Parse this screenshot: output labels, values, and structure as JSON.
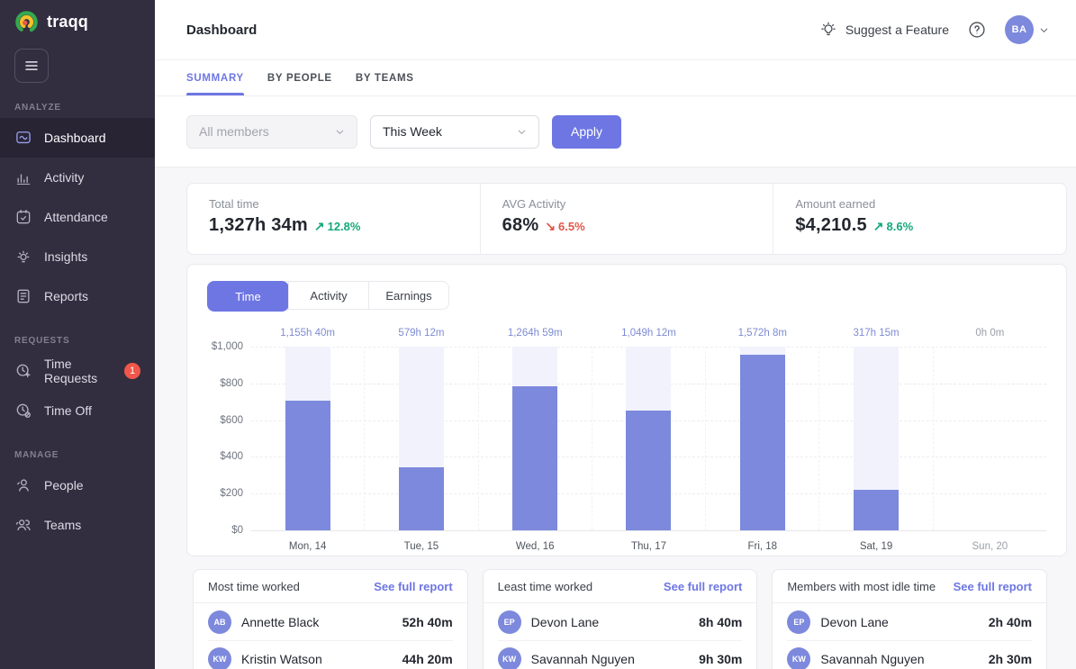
{
  "brand": {
    "name": "traqq"
  },
  "colors": {
    "accent": "#6d76e3",
    "bar": "#7d89dc",
    "track": "#f1f2fb",
    "green": "#14a97a",
    "red": "#e25649",
    "sidebar_bg": "#322e40",
    "badge": "#f0564a",
    "logo_green": "#35a94f",
    "logo_yellow": "#f2c12e",
    "logo_red": "#e8594a"
  },
  "sidebar": {
    "sections": [
      {
        "label": "ANALYZE",
        "items": [
          {
            "label": "Dashboard",
            "icon": "dashboard-icon",
            "active": true
          },
          {
            "label": "Activity",
            "icon": "activity-icon"
          },
          {
            "label": "Attendance",
            "icon": "attendance-icon"
          },
          {
            "label": "Insights",
            "icon": "insights-icon"
          },
          {
            "label": "Reports",
            "icon": "reports-icon"
          }
        ]
      },
      {
        "label": "REQUESTS",
        "items": [
          {
            "label": "Time Requests",
            "icon": "time-requests-icon",
            "badge": "1"
          },
          {
            "label": "Time Off",
            "icon": "time-off-icon"
          }
        ]
      },
      {
        "label": "MANAGE",
        "items": [
          {
            "label": "People",
            "icon": "people-icon"
          },
          {
            "label": "Teams",
            "icon": "teams-icon"
          }
        ]
      }
    ]
  },
  "header": {
    "title": "Dashboard",
    "suggest_feature": "Suggest a Feature",
    "avatar_initials": "BA"
  },
  "tabs": [
    {
      "label": "SUMMARY",
      "active": true
    },
    {
      "label": "BY PEOPLE",
      "active": false
    },
    {
      "label": "BY TEAMS",
      "active": false
    }
  ],
  "filters": {
    "members": "All members",
    "period": "This Week",
    "apply": "Apply"
  },
  "stats": [
    {
      "label": "Total time",
      "value": "1,327h 34m",
      "trend": "up",
      "pct": "12.8%"
    },
    {
      "label": "AVG Activity",
      "value": "68%",
      "trend": "down",
      "pct": "6.5%"
    },
    {
      "label": "Amount earned",
      "value": "$4,210.5",
      "trend": "up",
      "pct": "8.6%"
    }
  ],
  "chart_toggle": [
    {
      "label": "Time",
      "active": true
    },
    {
      "label": "Activity",
      "active": false
    },
    {
      "label": "Earnings",
      "active": false
    }
  ],
  "chart_data": {
    "type": "bar",
    "categories": [
      "Mon, 14",
      "Tue, 15",
      "Wed, 16",
      "Thu, 17",
      "Fri, 18",
      "Sat, 19",
      "Sun, 20"
    ],
    "values": [
      705,
      345,
      785,
      650,
      958,
      222,
      0
    ],
    "bar_labels": [
      "1,155h 40m",
      "579h 12m",
      "1,264h 59m",
      "1,049h 12m",
      "1,572h 8m",
      "317h 15m",
      "0h 0m"
    ],
    "y_ticks": [
      "$1,000",
      "$800",
      "$600",
      "$400",
      "$200",
      "$0"
    ],
    "ylim": [
      0,
      1000
    ],
    "grid": "dashed horizontal and vertical, light gray",
    "legend": "none"
  },
  "report_cards": [
    {
      "title": "Most time worked",
      "link": "See full report",
      "rows": [
        {
          "initials": "AB",
          "name": "Annette Black",
          "value": "52h 40m"
        },
        {
          "initials": "KW",
          "name": "Kristin Watson",
          "value": "44h 20m"
        }
      ]
    },
    {
      "title": "Least time worked",
      "link": "See full report",
      "rows": [
        {
          "initials": "EP",
          "name": "Devon Lane",
          "value": "8h 40m"
        },
        {
          "initials": "KW",
          "name": "Savannah Nguyen",
          "value": "9h 30m"
        }
      ]
    },
    {
      "title": "Members with most idle time",
      "link": "See full report",
      "rows": [
        {
          "initials": "EP",
          "name": "Devon Lane",
          "value": "2h 40m"
        },
        {
          "initials": "KW",
          "name": "Savannah Nguyen",
          "value": "2h 30m"
        }
      ]
    }
  ]
}
